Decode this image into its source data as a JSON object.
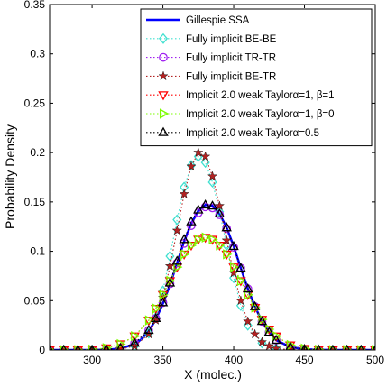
{
  "chart_data": {
    "type": "line",
    "xlabel": "X (molec.)",
    "ylabel": "Probability Density",
    "xlim": [
      270,
      500
    ],
    "ylim": [
      0,
      0.35
    ],
    "xticks": [
      300,
      350,
      400,
      450,
      500
    ],
    "xtick_labels": [
      "300",
      "350",
      "400",
      "450",
      "500"
    ],
    "yticks": [
      0,
      0.05,
      0.1,
      0.15,
      0.2,
      0.25,
      0.3,
      0.35
    ],
    "ytick_labels": [
      "0",
      "0.05",
      "0.1",
      "0.15",
      "0.2",
      "0.25",
      "0.3",
      "0.35"
    ],
    "grid": false,
    "legend_position": "top-right",
    "series": [
      {
        "name": "Gillespie SSA",
        "color": "#0000ff",
        "line": "solid",
        "marker": "none",
        "x": [
          270,
          280,
          290,
          300,
          310,
          320,
          330,
          335,
          340,
          345,
          350,
          355,
          360,
          365,
          370,
          375,
          380,
          385,
          390,
          395,
          400,
          405,
          410,
          415,
          420,
          425,
          430,
          440,
          450,
          460,
          470,
          480,
          490,
          500
        ],
        "y": [
          0,
          0,
          0,
          0,
          0.0003,
          0.0015,
          0.006,
          0.011,
          0.019,
          0.031,
          0.047,
          0.066,
          0.088,
          0.11,
          0.128,
          0.141,
          0.147,
          0.146,
          0.138,
          0.124,
          0.105,
          0.083,
          0.062,
          0.044,
          0.029,
          0.018,
          0.01,
          0.003,
          0.0008,
          0.0002,
          0,
          0,
          0,
          0
        ]
      },
      {
        "name": "Fully implicit BE-BE",
        "color": "#40e0d0",
        "line": "dotted",
        "marker": "diamond",
        "x": [
          270,
          280,
          290,
          300,
          310,
          320,
          330,
          340,
          345,
          350,
          355,
          360,
          365,
          370,
          375,
          380,
          385,
          390,
          395,
          400,
          405,
          410,
          420,
          430,
          440,
          450,
          460,
          470,
          480,
          490,
          500
        ],
        "y": [
          0,
          0,
          0,
          0,
          0,
          0.001,
          0.004,
          0.017,
          0.033,
          0.06,
          0.095,
          0.132,
          0.165,
          0.187,
          0.196,
          0.19,
          0.17,
          0.14,
          0.106,
          0.073,
          0.045,
          0.025,
          0.007,
          0.0015,
          0.0002,
          0,
          0,
          0,
          0,
          0,
          0
        ]
      },
      {
        "name": "Fully implicit TR-TR",
        "color": "#a020f0",
        "line": "dotted",
        "marker": "circle",
        "x": [
          270,
          280,
          290,
          300,
          310,
          320,
          330,
          340,
          345,
          350,
          355,
          360,
          365,
          370,
          375,
          380,
          385,
          390,
          395,
          400,
          405,
          410,
          415,
          420,
          425,
          430,
          440,
          450,
          460,
          470,
          480,
          490,
          500
        ],
        "y": [
          0,
          0,
          0,
          0,
          0.0004,
          0.002,
          0.007,
          0.02,
          0.032,
          0.048,
          0.067,
          0.088,
          0.108,
          0.126,
          0.139,
          0.145,
          0.144,
          0.137,
          0.123,
          0.104,
          0.083,
          0.062,
          0.044,
          0.029,
          0.018,
          0.01,
          0.003,
          0.0008,
          0.0002,
          0,
          0,
          0,
          0
        ]
      },
      {
        "name": "Fully implicit BE-TR",
        "color": "#b22222",
        "line": "dotted",
        "marker": "star",
        "x": [
          270,
          280,
          290,
          300,
          310,
          320,
          330,
          340,
          345,
          350,
          355,
          360,
          365,
          370,
          375,
          380,
          385,
          390,
          395,
          400,
          405,
          410,
          415,
          420,
          425,
          430,
          440,
          450,
          460,
          470,
          480,
          490,
          500
        ],
        "y": [
          0,
          0,
          0,
          0,
          0,
          0.001,
          0.004,
          0.016,
          0.03,
          0.053,
          0.085,
          0.121,
          0.158,
          0.186,
          0.2,
          0.196,
          0.176,
          0.146,
          0.111,
          0.078,
          0.05,
          0.029,
          0.016,
          0.008,
          0.004,
          0.0015,
          0.0003,
          0,
          0,
          0,
          0,
          0,
          0
        ]
      },
      {
        "name": "Implicit 2.0 weak Taylorα=1, β=1",
        "color": "#ff0000",
        "line": "dotted",
        "marker": "triangle-down",
        "x": [
          270,
          280,
          290,
          300,
          310,
          320,
          330,
          340,
          345,
          350,
          355,
          360,
          365,
          370,
          375,
          380,
          385,
          390,
          395,
          400,
          405,
          410,
          415,
          420,
          425,
          430,
          440,
          450,
          460,
          470,
          480,
          490,
          500
        ],
        "y": [
          0,
          0,
          0,
          0.0005,
          0.002,
          0.006,
          0.014,
          0.03,
          0.042,
          0.056,
          0.07,
          0.084,
          0.097,
          0.106,
          0.112,
          0.114,
          0.112,
          0.106,
          0.097,
          0.084,
          0.07,
          0.056,
          0.043,
          0.031,
          0.021,
          0.014,
          0.005,
          0.0015,
          0.0004,
          0,
          0,
          0,
          0
        ]
      },
      {
        "name": "Implicit 2.0 weak Taylorα=1, β=0",
        "color": "#7cfc00",
        "line": "dotted",
        "marker": "triangle-right",
        "x": [
          270,
          280,
          290,
          300,
          310,
          320,
          330,
          340,
          345,
          350,
          355,
          360,
          365,
          370,
          375,
          380,
          385,
          390,
          395,
          400,
          405,
          410,
          415,
          420,
          425,
          430,
          440,
          450,
          460,
          470,
          480,
          490,
          500
        ],
        "y": [
          0,
          0,
          0,
          0.0005,
          0.002,
          0.006,
          0.014,
          0.03,
          0.042,
          0.056,
          0.07,
          0.084,
          0.097,
          0.106,
          0.112,
          0.114,
          0.112,
          0.106,
          0.097,
          0.084,
          0.07,
          0.056,
          0.043,
          0.031,
          0.021,
          0.014,
          0.005,
          0.0015,
          0.0004,
          0,
          0,
          0,
          0
        ]
      },
      {
        "name": "Implicit 2.0 weak Taylorα=0.5",
        "color": "#000000",
        "line": "dotted",
        "marker": "triangle-up",
        "x": [
          270,
          280,
          290,
          300,
          310,
          320,
          330,
          340,
          345,
          350,
          355,
          360,
          365,
          370,
          375,
          380,
          385,
          390,
          395,
          400,
          405,
          410,
          415,
          420,
          425,
          430,
          440,
          450,
          460,
          470,
          480,
          490,
          500
        ],
        "y": [
          0,
          0,
          0,
          0,
          0.0004,
          0.002,
          0.007,
          0.02,
          0.032,
          0.048,
          0.068,
          0.09,
          0.112,
          0.13,
          0.142,
          0.147,
          0.146,
          0.138,
          0.124,
          0.105,
          0.083,
          0.062,
          0.044,
          0.029,
          0.018,
          0.01,
          0.003,
          0.0008,
          0.0002,
          0,
          0,
          0,
          0
        ]
      }
    ]
  }
}
